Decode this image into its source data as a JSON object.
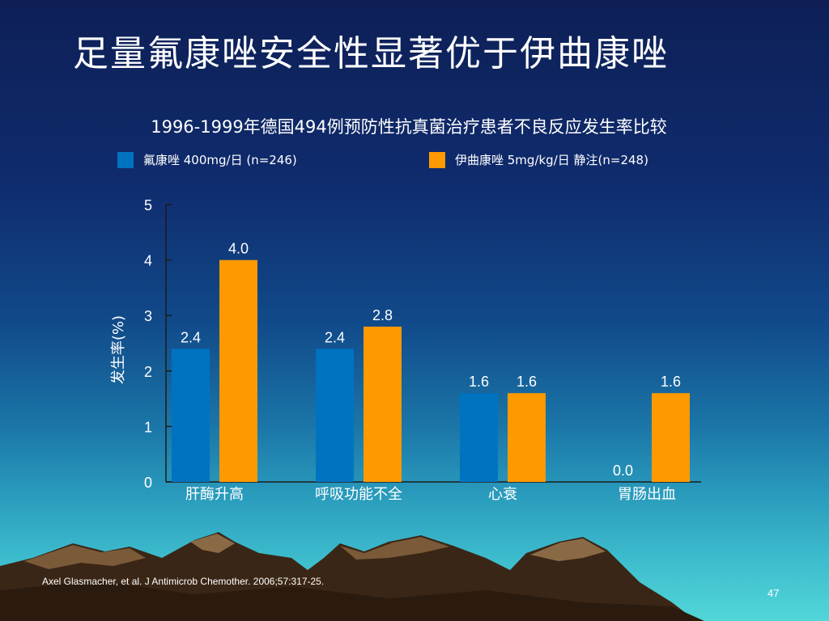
{
  "slide": {
    "title": "足量氟康唑安全性显著优于伊曲康唑",
    "citation": "Axel Glasmacher, et al. J Antimicrob Chemother. 2006;57:317-25.",
    "page_number": "47"
  },
  "colors": {
    "series_1": "#0073c0",
    "series_2": "#ff9900",
    "text": "#ffffff"
  },
  "chart_data": {
    "type": "bar",
    "title": "1996-1999年德国494例预防性抗真菌治疗患者不良反应发生率比较",
    "ylabel": "发生率(%)",
    "xlabel": "",
    "ylim": [
      0,
      5
    ],
    "yticks": [
      0,
      1,
      2,
      3,
      4,
      5
    ],
    "grid": false,
    "legend_position": "top",
    "categories": [
      "肝酶升高",
      "呼吸功能不全",
      "心衰",
      "胃肠出血"
    ],
    "series": [
      {
        "name": "氟康唑 400mg/日 (n=246)",
        "values": [
          2.4,
          2.4,
          1.6,
          0.0
        ],
        "labels": [
          "2.4",
          "2.4",
          "1.6",
          "0.0"
        ]
      },
      {
        "name": "伊曲康唑 5mg/kg/日 静注(n=248)",
        "values": [
          4.0,
          2.8,
          1.6,
          1.6
        ],
        "labels": [
          "4.0",
          "2.8",
          "1.6",
          "1.6"
        ]
      }
    ]
  }
}
